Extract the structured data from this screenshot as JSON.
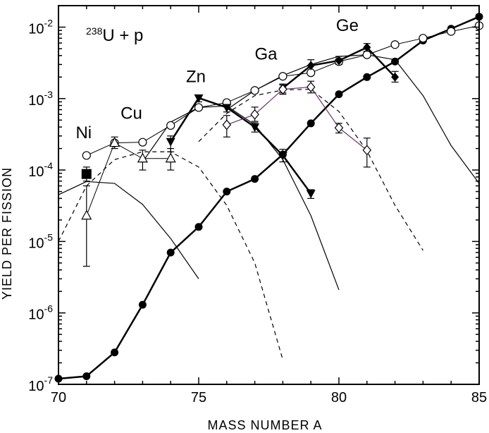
{
  "chart_data": {
    "type": "scatter",
    "title": "",
    "annotation": {
      "sup": "238",
      "main": "U  +  p"
    },
    "xlabel": "MASS NUMBER A",
    "ylabel": "YIELD PER FISSION",
    "xlim": [
      70,
      85
    ],
    "ylim": [
      1e-07,
      0.02
    ],
    "yscale": "log",
    "grid": false,
    "legend": "none",
    "x_ticks": [
      "70",
      "75",
      "80",
      "85"
    ],
    "y_ticks": [
      {
        "base": "10",
        "exp": "-7"
      },
      {
        "base": "10",
        "exp": "-6"
      },
      {
        "base": "10",
        "exp": "-5"
      },
      {
        "base": "10",
        "exp": "-4"
      },
      {
        "base": "10",
        "exp": "-3"
      },
      {
        "base": "10",
        "exp": "-2"
      }
    ],
    "element_labels": [
      {
        "text": "Ni",
        "x": 70.9,
        "y": 0.00028
      },
      {
        "text": "Cu",
        "x": 72.6,
        "y": 0.00052
      },
      {
        "text": "Zn",
        "x": 74.9,
        "y": 0.0017
      },
      {
        "text": "Ga",
        "x": 77.4,
        "y": 0.0035
      },
      {
        "text": "Ge",
        "x": 80.3,
        "y": 0.0088
      }
    ],
    "series": [
      {
        "marker": "filled-circle",
        "line": "thick",
        "x": [
          70,
          71,
          72,
          73,
          74,
          75,
          76,
          77,
          78,
          79,
          80,
          81,
          82,
          83,
          84,
          85
        ],
        "y": [
          1.2e-07,
          1.3e-07,
          2.8e-07,
          1.3e-06,
          7e-06,
          1.6e-05,
          5e-05,
          7.5e-05,
          0.000165,
          0.00045,
          0.00115,
          0.002,
          0.0033,
          0.0065,
          0.0095,
          0.014
        ]
      },
      {
        "marker": "open-circle",
        "line": "thin",
        "x": [
          71,
          72,
          73,
          74,
          75,
          76,
          77,
          78,
          79,
          80,
          81,
          82,
          83,
          84,
          85
        ],
        "y": [
          0.00016,
          0.00024,
          0.000245,
          0.00042,
          0.00075,
          0.00088,
          0.0013,
          0.00205,
          0.0023,
          0.0033,
          0.0041,
          0.0057,
          0.007,
          0.0087,
          0.0105
        ]
      },
      {
        "marker": "filled-square",
        "line": "none",
        "x": [
          71
        ],
        "y": [
          8.8e-05
        ],
        "err": [
          [
            7e-05,
            0.00011
          ]
        ]
      },
      {
        "marker": "open-triangle",
        "line": "thin",
        "x": [
          71,
          72,
          73,
          74
        ],
        "y": [
          2.3e-05,
          0.00024,
          0.000145,
          0.000145
        ],
        "err": [
          [
            4.5e-06,
            6e-05
          ],
          [
            0.0002,
            0.00029
          ],
          [
            0.0001,
            0.00019
          ],
          [
            0.0001,
            0.0002
          ]
        ]
      },
      {
        "marker": "filled-triangle-down",
        "line": "thick",
        "x": [
          74,
          75,
          76,
          77,
          78,
          79
        ],
        "y": [
          0.00025,
          0.00102,
          0.00075,
          0.0004,
          0.00016,
          4.7e-05
        ],
        "err": [
          [
            0.00018,
            0.0003
          ],
          [
            0.0009,
            0.0011
          ],
          [
            0.00065,
            0.00085
          ],
          [
            0.00034,
            0.00046
          ],
          [
            0.00013,
            0.000195
          ],
          [
            4e-05,
            5.3e-05
          ]
        ]
      },
      {
        "marker": "filled-diamond",
        "line": "thick",
        "x": [
          78,
          79,
          80,
          81,
          82
        ],
        "y": [
          0.0014,
          0.0029,
          0.0034,
          0.0052,
          0.002
        ],
        "err": [
          [
            0.0012,
            0.0016
          ],
          [
            0.0024,
            0.0035
          ],
          [
            0.003,
            0.0039
          ],
          [
            0.0046,
            0.0059
          ],
          [
            0.0017,
            0.0024
          ]
        ]
      },
      {
        "marker": "open-diamond",
        "line": "purple",
        "x": [
          76,
          77,
          78,
          79,
          80,
          81
        ],
        "y": [
          0.00043,
          0.0006,
          0.00135,
          0.00145,
          0.00039,
          0.00019
        ],
        "err": [
          [
            0.00029,
            0.00058
          ],
          [
            0.00048,
            0.00076
          ],
          [
            0.00115,
            0.00155
          ],
          [
            0.0012,
            0.00175
          ],
          [
            0.00033,
            0.00045
          ],
          [
            0.00011,
            0.00028
          ]
        ]
      },
      {
        "marker": "none",
        "line": "solid-curve",
        "note": "Ni",
        "x": [
          70,
          71,
          72,
          73,
          74,
          75
        ],
        "y": [
          4.5e-05,
          6.9e-05,
          6.5e-05,
          3.3e-05,
          1.1e-05,
          3e-06
        ]
      },
      {
        "marker": "none",
        "line": "dashed-curve",
        "note": "Cu",
        "x": [
          70,
          71,
          72,
          73,
          74,
          75,
          76,
          77,
          78
        ],
        "y": [
          1e-05,
          6e-05,
          0.00014,
          0.00018,
          0.00018,
          0.00011,
          3.2e-05,
          5e-06,
          2.2e-07
        ]
      },
      {
        "marker": "none",
        "line": "solid-curve",
        "note": "Zn",
        "x": [
          73,
          74,
          75,
          76,
          77,
          78,
          79,
          80
        ],
        "y": [
          0.00013,
          0.00047,
          0.00075,
          0.00079,
          0.00043,
          0.00014,
          2.3e-05,
          2.1e-06
        ]
      },
      {
        "marker": "none",
        "line": "dashed-curve",
        "note": "Ga",
        "x": [
          75,
          76,
          77,
          78,
          79,
          80,
          81,
          82,
          83
        ],
        "y": [
          0.00025,
          0.00062,
          0.0011,
          0.00132,
          0.00135,
          0.00066,
          0.000185,
          3.2e-05,
          7.5e-06
        ]
      },
      {
        "marker": "none",
        "line": "solid-curve",
        "note": "Ge",
        "x": [
          76,
          77,
          78,
          79,
          80,
          81,
          82,
          83,
          84,
          85
        ],
        "y": [
          0.0007,
          0.0013,
          0.0021,
          0.003,
          0.0039,
          0.0041,
          0.0035,
          0.0011,
          0.00022,
          6.5e-05
        ]
      }
    ]
  }
}
